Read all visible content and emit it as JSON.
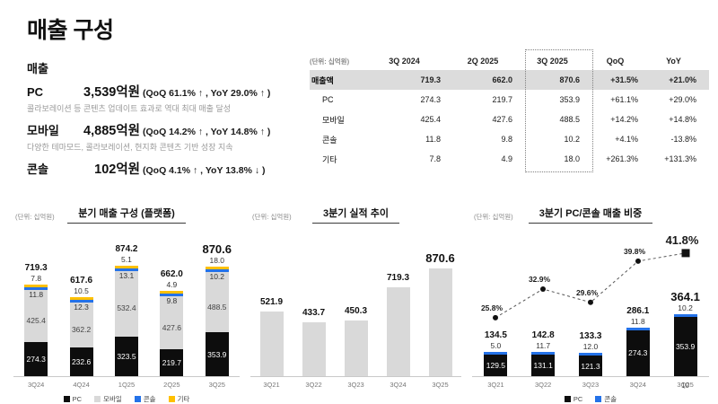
{
  "page": {
    "title": "매출 구성",
    "page_number": "10"
  },
  "left_panel": {
    "heading": "매출",
    "items": [
      {
        "label": "PC",
        "value": "3,539억원",
        "detail": "(QoQ 61.1% ↑ , YoY 29.0% ↑ )",
        "note": "콜라보레이션 등 콘텐츠 업데이트 효과로 역대 최대 매출 달성"
      },
      {
        "label": "모바일",
        "value": "4,885억원",
        "detail": "(QoQ 14.2% ↑ , YoY 14.8% ↑ )",
        "note": "다양한 테마모드, 콜라보레이션, 현지화 콘텐츠 기반 성장 지속"
      },
      {
        "label": "콘솔",
        "value": "102억원",
        "detail": "(QoQ 4.1% ↑ , YoY 13.8% ↓ )",
        "note": ""
      }
    ]
  },
  "table": {
    "unit_label": "(단위: 십억원)",
    "columns": [
      "3Q 2024",
      "2Q 2025",
      "3Q 2025",
      "QoQ",
      "YoY"
    ],
    "highlight_column": "3Q 2025",
    "rows": [
      {
        "label": "매출액",
        "values": [
          "719.3",
          "662.0",
          "870.6",
          "+31.5%",
          "+21.0%"
        ],
        "highlight": true
      },
      {
        "label": "PC",
        "values": [
          "274.3",
          "219.7",
          "353.9",
          "+61.1%",
          "+29.0%"
        ],
        "highlight": false
      },
      {
        "label": "모바일",
        "values": [
          "425.4",
          "427.6",
          "488.5",
          "+14.2%",
          "+14.8%"
        ],
        "highlight": false
      },
      {
        "label": "콘솔",
        "values": [
          "11.8",
          "9.8",
          "10.2",
          "+4.1%",
          "-13.8%"
        ],
        "highlight": false
      },
      {
        "label": "기타",
        "values": [
          "7.8",
          "4.9",
          "18.0",
          "+261.3%",
          "+131.3%"
        ],
        "highlight": false
      }
    ]
  },
  "colors": {
    "pc": "#0d0d0d",
    "mobile": "#d9d9d9",
    "console": "#2472e8",
    "etc": "#ffc000",
    "bar_gray": "#d9d9d9"
  },
  "chart_data": [
    {
      "type": "bar",
      "stacked": true,
      "title": "분기 매출 구성 (플랫폼)",
      "unit_label": "(단위: 십억원)",
      "categories": [
        "3Q24",
        "4Q24",
        "1Q25",
        "2Q25",
        "3Q25"
      ],
      "series": [
        {
          "name": "PC",
          "color": "#0d0d0d",
          "values": [
            274.3,
            232.6,
            323.5,
            219.7,
            353.9
          ]
        },
        {
          "name": "모바일",
          "color": "#d9d9d9",
          "values": [
            425.4,
            362.2,
            532.4,
            427.6,
            488.5
          ]
        },
        {
          "name": "콘솔",
          "color": "#2472e8",
          "values": [
            11.8,
            12.3,
            13.1,
            9.8,
            10.2
          ]
        },
        {
          "name": "기타",
          "color": "#ffc000",
          "values": [
            7.8,
            10.5,
            5.1,
            4.9,
            18.0
          ]
        }
      ],
      "totals": [
        719.3,
        617.6,
        874.2,
        662.0,
        870.6
      ],
      "legend": [
        "PC",
        "모바일",
        "콘솔",
        "기타"
      ],
      "ylim": [
        0,
        874.2
      ]
    },
    {
      "type": "bar",
      "title": "3분기 실적 추이",
      "unit_label": "(단위: 십억원)",
      "categories": [
        "3Q21",
        "3Q22",
        "3Q23",
        "3Q24",
        "3Q25"
      ],
      "values": [
        521.9,
        433.7,
        450.3,
        719.3,
        870.6
      ],
      "bar_color": "#d9d9d9",
      "ylim": [
        0,
        870.6
      ]
    },
    {
      "type": "bar+line",
      "stacked": true,
      "title": "3분기 PC/콘솔 매출 비중",
      "unit_label": "(단위: 십억원)",
      "categories": [
        "3Q21",
        "3Q22",
        "3Q23",
        "3Q24",
        "3Q25"
      ],
      "series": [
        {
          "name": "PC",
          "color": "#0d0d0d",
          "values": [
            129.5,
            131.1,
            121.3,
            274.3,
            353.9
          ]
        },
        {
          "name": "콘솔",
          "color": "#2472e8",
          "values": [
            5.0,
            11.7,
            12.0,
            11.8,
            10.2
          ]
        }
      ],
      "totals": [
        134.5,
        142.8,
        133.3,
        286.1,
        364.1
      ],
      "line": {
        "name": "PC/콘솔 비중",
        "values_pct": [
          25.8,
          32.9,
          29.6,
          39.8,
          41.8
        ]
      },
      "legend": [
        "PC",
        "콘솔"
      ]
    }
  ]
}
